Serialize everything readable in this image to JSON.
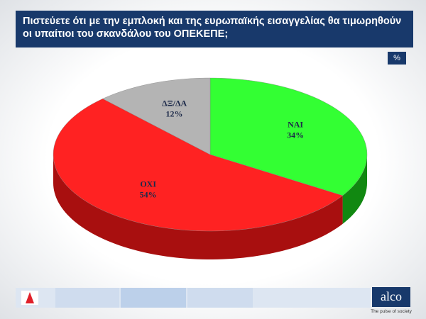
{
  "chart_data": {
    "type": "pie",
    "title": "Πιστεύετε ότι με την εμπλοκή και της ευρωπαϊκής εισαγγελίας θα τιμωρηθούν οι υπαίτιοι του σκανδάλου του ΟΠΕΚΕΠΕ;",
    "unit": "%",
    "categories": [
      "ΝΑΙ",
      "ΟΧΙ",
      "ΔΞ/ΔΑ"
    ],
    "values": [
      34,
      54,
      12
    ],
    "value_labels": [
      "34%",
      "54%",
      "12%"
    ],
    "colors": [
      "#33ff33",
      "#ff2222",
      "#b4b4b4"
    ],
    "side_colors": [
      "#118811",
      "#a80f0f",
      "#6f6f6f"
    ]
  },
  "footer": {
    "brand": "alco",
    "tagline": "The pulse of society"
  }
}
